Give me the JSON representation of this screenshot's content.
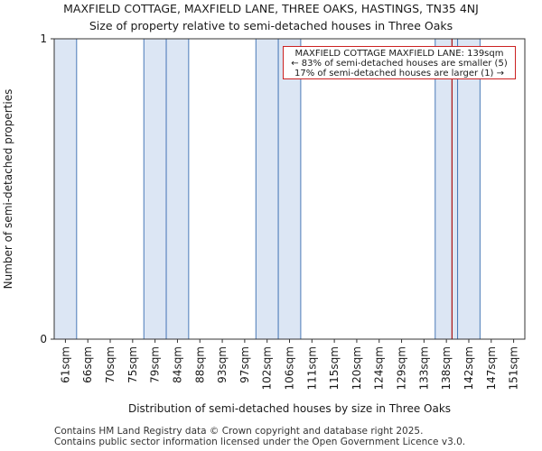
{
  "title_line1": "MAXFIELD COTTAGE, MAXFIELD LANE, THREE OAKS, HASTINGS, TN35 4NJ",
  "title_line2": "Size of property relative to semi-detached houses in Three Oaks",
  "footer_line1": "Contains HM Land Registry data © Crown copyright and database right 2025.",
  "footer_line2": "Contains public sector information licensed under the Open Government Licence v3.0.",
  "colors": {
    "bar_fill": "#dce6f4",
    "bar_edge": "#4a7ab8",
    "marker": "#aa1111",
    "annotation_border": "#cc2222"
  },
  "chart_data": {
    "type": "bar",
    "xlabel": "Distribution of semi-detached houses by size in Three Oaks",
    "ylabel": "Number of semi-detached properties",
    "categories": [
      "61sqm",
      "66sqm",
      "70sqm",
      "75sqm",
      "79sqm",
      "84sqm",
      "88sqm",
      "93sqm",
      "97sqm",
      "102sqm",
      "106sqm",
      "111sqm",
      "115sqm",
      "120sqm",
      "124sqm",
      "129sqm",
      "133sqm",
      "138sqm",
      "142sqm",
      "147sqm",
      "151sqm"
    ],
    "values": [
      1,
      0,
      0,
      0,
      1,
      1,
      0,
      0,
      0,
      1,
      1,
      0,
      0,
      0,
      0,
      0,
      0,
      1,
      1,
      0,
      0
    ],
    "ylim": [
      0,
      1
    ],
    "yticks": [
      "0",
      "1"
    ],
    "grid": false,
    "marker_value": 139,
    "annotation": {
      "line1": "MAXFIELD COTTAGE MAXFIELD LANE: 139sqm",
      "line2": "← 83% of semi-detached houses are smaller (5)",
      "line3": "17% of semi-detached houses are larger (1) →"
    }
  }
}
